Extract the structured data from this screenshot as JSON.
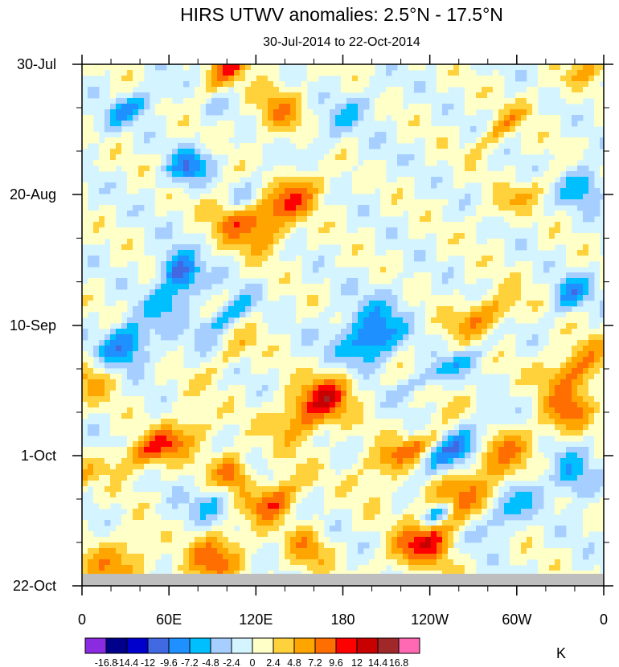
{
  "chart_data": {
    "type": "heatmap",
    "title": "HIRS UTWV anomalies: 2.5°N - 17.5°N",
    "subtitle": "30-Jul-2014 to 22-Oct-2014",
    "xlabel": "",
    "ylabel": "",
    "x_ticks": [
      "0",
      "60E",
      "120E",
      "180",
      "120W",
      "60W",
      "0"
    ],
    "x_range": [
      0,
      360
    ],
    "y_ticks": [
      "30-Jul",
      "20-Aug",
      "10-Sep",
      "1-Oct",
      "22-Oct"
    ],
    "y_range": [
      "30-Jul-2014",
      "22-Oct-2014"
    ],
    "colorbar": {
      "units": "K",
      "levels": [
        "-16.8",
        "-14.4",
        "-12",
        "-9.6",
        "-7.2",
        "-4.8",
        "-2.4",
        "0",
        "2.4",
        "4.8",
        "7.2",
        "9.6",
        "12",
        "14.4",
        "16.8"
      ],
      "colors": [
        "#8a2be2",
        "#00008b",
        "#0000cd",
        "#4169e1",
        "#1e90ff",
        "#00bfff",
        "#a6cfff",
        "#d4f4ff",
        "#ffffc8",
        "#ffd23c",
        "#ffa500",
        "#ff6e00",
        "#ff0000",
        "#c80000",
        "#a02828",
        "#ff69b4"
      ]
    },
    "missing_color": "#bebebe"
  }
}
